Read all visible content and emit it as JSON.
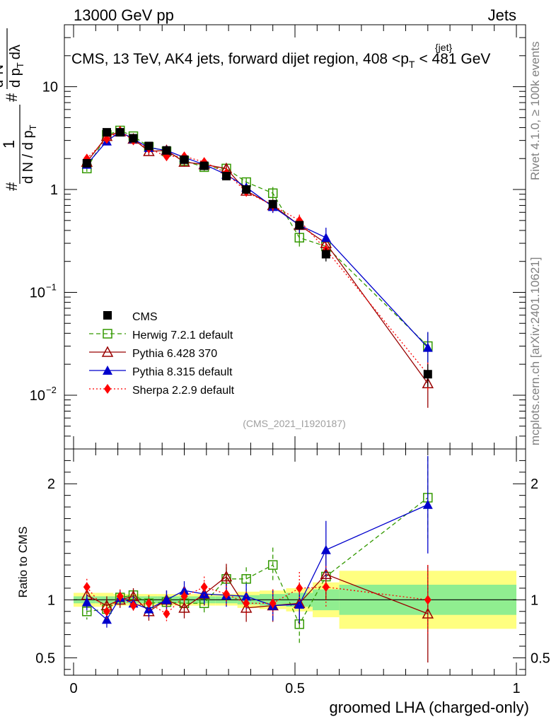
{
  "header": {
    "energy_label": "13000 GeV pp",
    "process_label": "Jets"
  },
  "side_labels": {
    "rivet": "Rivet 4.1.0, ≥ 100k events",
    "mcplots": "mcplots.cern.ch [arXiv:2401.10621]"
  },
  "chart_data": {
    "type": "line",
    "title_prefix": "CMS, 13 TeV, AK4 jets, forward dijet region, 408 <p",
    "title_sub": "T",
    "title_sup": "{jet}",
    "title_suffix": "< 481 GeV",
    "analysis_id": "(CMS_2021_I1920187)",
    "xlabel": "groomed LHA (charged-only)",
    "ylabel_ratio": "Ratio to CMS",
    "ylabel_top": {
      "hash1": "#",
      "one": "1",
      "dN": "d N / d p",
      "dN_sub": "T",
      "hash2": "#",
      "d2N": "d",
      "d2N_sup": "2",
      "d2N_tail": "N",
      "denom": "d p",
      "denom_sub": "T",
      "denom_tail": "dλ"
    },
    "xlim": [
      0,
      1
    ],
    "ylim_top": [
      0.003,
      40
    ],
    "ylim_ratio": [
      0.35,
      2.3
    ],
    "x_ticks": [
      "0",
      "0.5",
      "1"
    ],
    "y_ticks_top": [
      "1",
      "10"
    ],
    "y_ticks_top_pow": [
      {
        "base": "10",
        "exp": "−1"
      },
      {
        "base": "10",
        "exp": "−2"
      }
    ],
    "y_ticks_ratio": [
      "0.5",
      "1",
      "2"
    ],
    "x": [
      0.03,
      0.075,
      0.105,
      0.135,
      0.17,
      0.21,
      0.25,
      0.295,
      0.345,
      0.39,
      0.45,
      0.51,
      0.57,
      0.8
    ],
    "bin_edges": [
      0.0,
      0.05,
      0.09,
      0.12,
      0.15,
      0.19,
      0.23,
      0.27,
      0.32,
      0.37,
      0.42,
      0.48,
      0.54,
      0.6,
      1.0
    ],
    "series": [
      {
        "name": "CMS",
        "legend": "CMS",
        "color": "#000000",
        "marker": "square-filled",
        "values": [
          1.8,
          3.6,
          3.6,
          3.15,
          2.65,
          2.4,
          1.95,
          1.7,
          1.35,
          1.0,
          0.72,
          0.45,
          0.235,
          0.016
        ],
        "ratio": [
          1,
          1,
          1,
          1,
          1,
          1,
          1,
          1,
          1,
          1,
          1,
          1,
          1,
          1
        ],
        "ratio_err_inner": [
          0.03,
          0.03,
          0.03,
          0.03,
          0.03,
          0.03,
          0.03,
          0.03,
          0.03,
          0.04,
          0.05,
          0.06,
          0.09,
          0.13
        ],
        "ratio_err_outer": [
          0.06,
          0.06,
          0.05,
          0.05,
          0.05,
          0.05,
          0.05,
          0.05,
          0.05,
          0.07,
          0.08,
          0.1,
          0.15,
          0.25
        ]
      },
      {
        "name": "Herwig",
        "legend": "Herwig 7.2.1 default",
        "color": "#339900",
        "marker": "square-open",
        "dash": "6,4",
        "values": [
          1.6,
          3.4,
          3.75,
          3.3,
          2.6,
          2.35,
          1.9,
          1.65,
          1.6,
          1.18,
          0.92,
          0.34,
          0.28,
          0.03
        ],
        "ratio": [
          0.9,
          0.92,
          1.02,
          1.04,
          0.97,
          0.98,
          0.97,
          0.97,
          1.18,
          1.18,
          1.3,
          0.79,
          1.2,
          1.88
        ],
        "ratio_err": [
          0.07,
          0.06,
          0.05,
          0.05,
          0.06,
          0.06,
          0.07,
          0.08,
          0.1,
          0.1,
          0.15,
          0.18,
          0.2,
          0.35
        ]
      },
      {
        "name": "Pythia6",
        "legend": "Pythia 6.428 370",
        "color": "#990000",
        "marker": "triangle-open",
        "dash": "",
        "values": [
          1.85,
          3.3,
          3.65,
          3.1,
          2.35,
          2.4,
          1.85,
          1.75,
          1.6,
          0.97,
          0.7,
          0.45,
          0.3,
          0.013
        ],
        "ratio": [
          1.04,
          0.95,
          1.0,
          1.03,
          0.9,
          1.0,
          0.93,
          1.05,
          1.2,
          0.93,
          0.95,
          0.97,
          1.22,
          0.88
        ],
        "ratio_err": [
          0.07,
          0.08,
          0.07,
          0.07,
          0.08,
          0.08,
          0.09,
          0.1,
          0.11,
          0.12,
          0.14,
          0.18,
          0.22,
          0.42
        ]
      },
      {
        "name": "Pythia8",
        "legend": "Pythia 8.315 default",
        "color": "#0000cc",
        "marker": "triangle-filled",
        "dash": "",
        "values": [
          1.75,
          2.95,
          3.65,
          3.1,
          2.55,
          2.4,
          2.05,
          1.75,
          1.4,
          1.05,
          0.68,
          0.45,
          0.34,
          0.029
        ],
        "ratio": [
          0.98,
          0.83,
          1.02,
          0.97,
          0.92,
          1.0,
          1.08,
          1.05,
          1.04,
          1.03,
          0.95,
          0.96,
          1.43,
          1.82
        ],
        "ratio_err": [
          0.07,
          0.07,
          0.06,
          0.06,
          0.07,
          0.08,
          0.08,
          0.09,
          0.1,
          0.11,
          0.13,
          0.16,
          0.25,
          0.42
        ]
      },
      {
        "name": "Sherpa",
        "legend": "Sherpa 2.2.9 default",
        "color": "#ff0000",
        "marker": "diamond-filled",
        "dash": "2,3",
        "values": [
          2.0,
          3.1,
          3.7,
          3.0,
          2.5,
          2.1,
          2.1,
          1.85,
          1.45,
          0.95,
          0.7,
          0.5,
          0.26,
          0.016
        ],
        "ratio": [
          1.11,
          0.9,
          1.03,
          0.95,
          0.97,
          0.88,
          1.03,
          1.11,
          1.05,
          0.97,
          0.97,
          1.1,
          1.11,
          1.0
        ],
        "ratio_err": [
          0.07,
          0.07,
          0.06,
          0.06,
          0.07,
          0.07,
          0.08,
          0.09,
          0.1,
          0.1,
          0.12,
          0.14,
          0.18,
          0.3
        ]
      }
    ]
  }
}
